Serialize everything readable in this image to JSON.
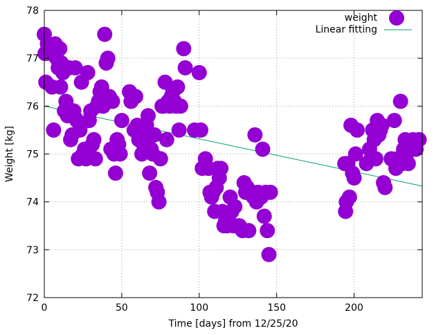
{
  "chart_data": {
    "type": "scatter",
    "title": "",
    "xlabel": "Time [days] from 12/25/20",
    "ylabel": "Weight [kg]",
    "xlim": [
      0,
      244
    ],
    "ylim": [
      72,
      78
    ],
    "xticks": [
      0,
      50,
      100,
      150,
      200
    ],
    "yticks": [
      72,
      73,
      74,
      75,
      76,
      77,
      78
    ],
    "grid": true,
    "legend_position": "top-right",
    "series": [
      {
        "name": "weight",
        "kind": "points",
        "color": "#9400d3",
        "points": [
          [
            0,
            77.5
          ],
          [
            0.5,
            77.1
          ],
          [
            1,
            76.5
          ],
          [
            2,
            77.3
          ],
          [
            3,
            77.2
          ],
          [
            4,
            77.1
          ],
          [
            5,
            76.4
          ],
          [
            6,
            75.5
          ],
          [
            7,
            77.3
          ],
          [
            8,
            77.0
          ],
          [
            9,
            76.8
          ],
          [
            10,
            77.2
          ],
          [
            10.5,
            76.4
          ],
          [
            11,
            76.9
          ],
          [
            12,
            76.7
          ],
          [
            13,
            75.9
          ],
          [
            14,
            76.1
          ],
          [
            15,
            75.8
          ],
          [
            16,
            76.8
          ],
          [
            17,
            75.3
          ],
          [
            18,
            75.4
          ],
          [
            19,
            75.9
          ],
          [
            20,
            76.8
          ],
          [
            21,
            75.7
          ],
          [
            22,
            74.9
          ],
          [
            23,
            75.5
          ],
          [
            24,
            76.5
          ],
          [
            25,
            75.0
          ],
          [
            26,
            75.1
          ],
          [
            27,
            74.9
          ],
          [
            28,
            76.7
          ],
          [
            29,
            75.7
          ],
          [
            30,
            75.9
          ],
          [
            31,
            75.2
          ],
          [
            32,
            75.3
          ],
          [
            33,
            74.9
          ],
          [
            34,
            76.0
          ],
          [
            35,
            76.1
          ],
          [
            36,
            76.3
          ],
          [
            37,
            76.4
          ],
          [
            38,
            76.0
          ],
          [
            39,
            77.5
          ],
          [
            40,
            76.9
          ],
          [
            41,
            77.0
          ],
          [
            42,
            76.2
          ],
          [
            43,
            75.1
          ],
          [
            44,
            76.1
          ],
          [
            45,
            75.0
          ],
          [
            46,
            74.6
          ],
          [
            47,
            75.3
          ],
          [
            48,
            75.2
          ],
          [
            49,
            75.0
          ],
          [
            50,
            75.7
          ],
          [
            55,
            76.3
          ],
          [
            56,
            76.1
          ],
          [
            58,
            75.5
          ],
          [
            59,
            76.2
          ],
          [
            60,
            75.6
          ],
          [
            61,
            75.3
          ],
          [
            62,
            75.4
          ],
          [
            63,
            75.0
          ],
          [
            64,
            75.2
          ],
          [
            65,
            75.3
          ],
          [
            66,
            75.6
          ],
          [
            67,
            75.8
          ],
          [
            68,
            74.6
          ],
          [
            69,
            75.1
          ],
          [
            70,
            75.0
          ],
          [
            71,
            75.4
          ],
          [
            72,
            74.3
          ],
          [
            73,
            74.2
          ],
          [
            74,
            74.0
          ],
          [
            75,
            74.9
          ],
          [
            76,
            76.0
          ],
          [
            77,
            76.0
          ],
          [
            78,
            76.5
          ],
          [
            79,
            75.3
          ],
          [
            80,
            76.1
          ],
          [
            81,
            76.0
          ],
          [
            82,
            76.2
          ],
          [
            83,
            76.3
          ],
          [
            84,
            76.1
          ],
          [
            85,
            76.0
          ],
          [
            86,
            76.4
          ],
          [
            87,
            75.5
          ],
          [
            88,
            76.0
          ],
          [
            90,
            77.2
          ],
          [
            91,
            76.8
          ],
          [
            97,
            75.5
          ],
          [
            100,
            76.7
          ],
          [
            101,
            75.5
          ],
          [
            102,
            74.7
          ],
          [
            104,
            74.9
          ],
          [
            106,
            74.7
          ],
          [
            107,
            74.2
          ],
          [
            108,
            74.1
          ],
          [
            109,
            74.2
          ],
          [
            110,
            73.8
          ],
          [
            111,
            74.3
          ],
          [
            112,
            74.7
          ],
          [
            113,
            74.5
          ],
          [
            114,
            74.7
          ],
          [
            115,
            73.8
          ],
          [
            116,
            73.5
          ],
          [
            117,
            73.6
          ],
          [
            118,
            73.5
          ],
          [
            120,
            74.1
          ],
          [
            121,
            73.8
          ],
          [
            122,
            73.5
          ],
          [
            123,
            73.9
          ],
          [
            124,
            73.5
          ],
          [
            126,
            73.5
          ],
          [
            128,
            73.4
          ],
          [
            129,
            74.4
          ],
          [
            130,
            74.2
          ],
          [
            131,
            74.3
          ],
          [
            132,
            73.4
          ],
          [
            134,
            74.2
          ],
          [
            135,
            74.1
          ],
          [
            136,
            75.4
          ],
          [
            137,
            74.0
          ],
          [
            138,
            74.2
          ],
          [
            140,
            74.1
          ],
          [
            141,
            75.1
          ],
          [
            142,
            73.7
          ],
          [
            143,
            74.2
          ],
          [
            144,
            73.4
          ],
          [
            145,
            72.9
          ],
          [
            146,
            74.2
          ],
          [
            194,
            74.8
          ],
          [
            194.5,
            73.8
          ],
          [
            195,
            74.0
          ],
          [
            196,
            74.8
          ],
          [
            197,
            74.1
          ],
          [
            198,
            75.6
          ],
          [
            199,
            74.6
          ],
          [
            200,
            74.5
          ],
          [
            201,
            75.0
          ],
          [
            202,
            75.5
          ],
          [
            208,
            74.8
          ],
          [
            210,
            75.1
          ],
          [
            211,
            74.9
          ],
          [
            212,
            75.5
          ],
          [
            213,
            75.3
          ],
          [
            214,
            74.9
          ],
          [
            215,
            75.7
          ],
          [
            216,
            75.4
          ],
          [
            217,
            75.5
          ],
          [
            218,
            75.6
          ],
          [
            219,
            74.4
          ],
          [
            220,
            74.3
          ],
          [
            224,
            74.9
          ],
          [
            226,
            75.7
          ],
          [
            227,
            74.7
          ],
          [
            228,
            74.9
          ],
          [
            230,
            76.1
          ],
          [
            231,
            74.8
          ],
          [
            232,
            75.1
          ],
          [
            233,
            75.3
          ],
          [
            234,
            75.0
          ],
          [
            235,
            74.8
          ],
          [
            236,
            75.2
          ],
          [
            238,
            75.3
          ],
          [
            240,
            75.1
          ],
          [
            242,
            75.3
          ]
        ]
      },
      {
        "name": "Linear fitting",
        "kind": "line",
        "color": "#009e73",
        "start": [
          0,
          76.0
        ],
        "end": [
          244,
          74.33
        ]
      }
    ]
  }
}
